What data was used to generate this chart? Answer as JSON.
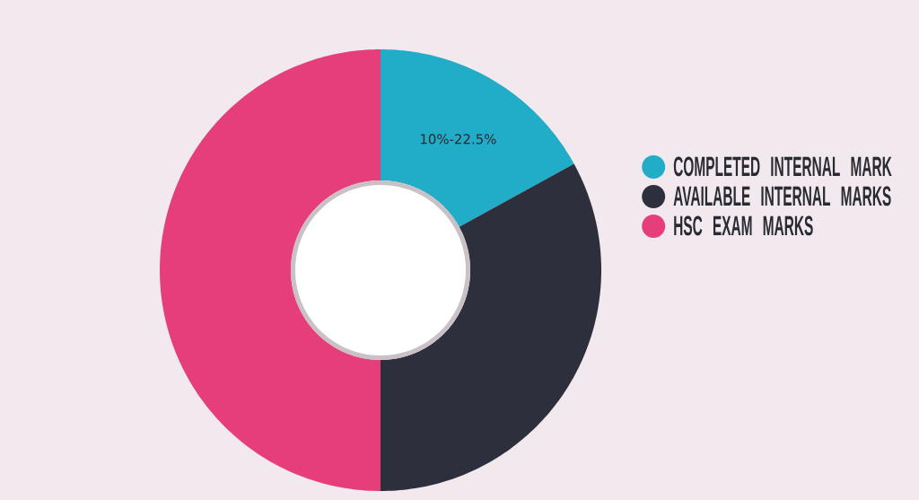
{
  "chart_data": {
    "type": "donut",
    "categories": [
      "COMPLETED INTERNAL MARK",
      "AVAILABLE INTERNAL MARKS",
      "HSC EXAM MARKS"
    ],
    "values": [
      17,
      33,
      50
    ],
    "colors": [
      "#21acc8",
      "#2e2f3d",
      "#e63e7a"
    ],
    "annotations": [
      "10%-22.5%"
    ],
    "legend": "right"
  }
}
